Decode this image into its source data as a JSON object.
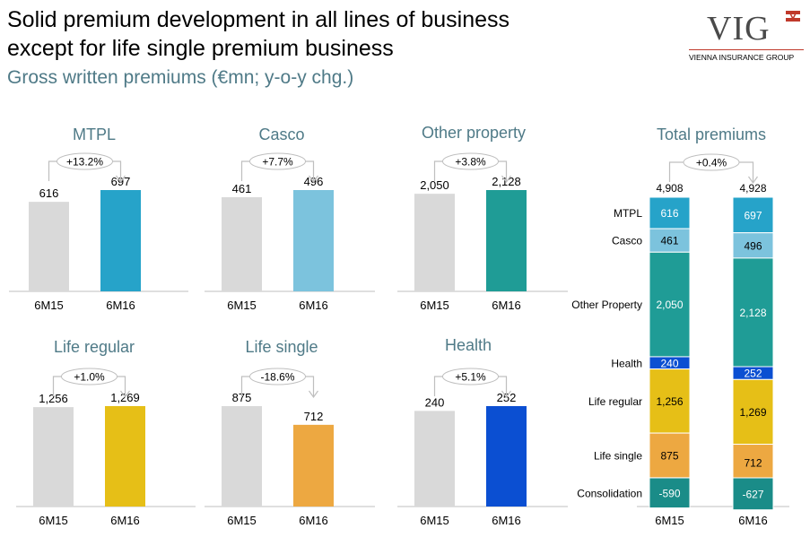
{
  "header": {
    "title_line1": "Solid premium development in all lines of business",
    "title_line2": "except for life single premium business",
    "subtitle": "Gross written premiums (€mn; y-o-y chg.)"
  },
  "logo": {
    "text": "VIG",
    "subtext": "VIENNA INSURANCE GROUP",
    "color": "#c0392b"
  },
  "chart_data": [
    {
      "type": "bar",
      "title": "MTPL",
      "categories": [
        "6M15",
        "6M16"
      ],
      "values": [
        616,
        697
      ],
      "value_labels": [
        "616",
        "697"
      ],
      "change": "+13.2%",
      "colors": [
        "#d9d9d9",
        "#26a3c9"
      ]
    },
    {
      "type": "bar",
      "title": "Casco",
      "categories": [
        "6M15",
        "6M16"
      ],
      "values": [
        461,
        496
      ],
      "value_labels": [
        "461",
        "496"
      ],
      "change": "+7.7%",
      "colors": [
        "#d9d9d9",
        "#7cc3dd"
      ]
    },
    {
      "type": "bar",
      "title": "Other property",
      "categories": [
        "6M15",
        "6M16"
      ],
      "values": [
        2050,
        2128
      ],
      "value_labels": [
        "2,050",
        "2,128"
      ],
      "change": "+3.8%",
      "colors": [
        "#d9d9d9",
        "#1f9c96"
      ]
    },
    {
      "type": "bar",
      "title": "Life regular",
      "categories": [
        "6M15",
        "6M16"
      ],
      "values": [
        1256,
        1269
      ],
      "value_labels": [
        "1,256",
        "1,269"
      ],
      "change": "+1.0%",
      "colors": [
        "#d9d9d9",
        "#e6bf17"
      ]
    },
    {
      "type": "bar",
      "title": "Life single",
      "categories": [
        "6M15",
        "6M16"
      ],
      "values": [
        875,
        712
      ],
      "value_labels": [
        "875",
        "712"
      ],
      "change": "-18.6%",
      "colors": [
        "#d9d9d9",
        "#eda841"
      ]
    },
    {
      "type": "bar",
      "title": "Health",
      "categories": [
        "6M15",
        "6M16"
      ],
      "values": [
        240,
        252
      ],
      "value_labels": [
        "240",
        "252"
      ],
      "change": "+5.1%",
      "colors": [
        "#d9d9d9",
        "#0b4fd2"
      ]
    },
    {
      "type": "stacked_bar",
      "title": "Total premiums",
      "categories": [
        "6M15",
        "6M16"
      ],
      "totals": [
        4908,
        4928
      ],
      "total_labels": [
        "4,908",
        "4,928"
      ],
      "change": "+0.4%",
      "series": [
        {
          "name": "MTPL",
          "values": [
            616,
            697
          ],
          "labels": [
            "616",
            "697"
          ],
          "color": "#26a3c9",
          "text_color": "#ffffff"
        },
        {
          "name": "Casco",
          "values": [
            461,
            496
          ],
          "labels": [
            "461",
            "496"
          ],
          "color": "#7cc3dd",
          "text_color": "#000000"
        },
        {
          "name": "Other Property",
          "values": [
            2050,
            2128
          ],
          "labels": [
            "2,050",
            "2,128"
          ],
          "color": "#1f9c96",
          "text_color": "#ffffff"
        },
        {
          "name": "Health",
          "values": [
            240,
            252
          ],
          "labels": [
            "240",
            "252"
          ],
          "color": "#0b4fd2",
          "text_color": "#ffffff"
        },
        {
          "name": "Life regular",
          "values": [
            1256,
            1269
          ],
          "labels": [
            "1,256",
            "1,269"
          ],
          "color": "#e6bf17",
          "text_color": "#000000"
        },
        {
          "name": "Life single",
          "values": [
            875,
            712
          ],
          "labels": [
            "875",
            "712"
          ],
          "color": "#eda841",
          "text_color": "#000000"
        },
        {
          "name": "Consolidation",
          "values": [
            -590,
            -627
          ],
          "labels": [
            "-590",
            "-627"
          ],
          "color": "#1a8c88",
          "text_color": "#ffffff"
        }
      ]
    }
  ],
  "colors": {
    "panel_title": "#4f7a87",
    "axis": "#bfbfbf",
    "baseline_gray": "#d9d9d9",
    "arrow": "#bfbfbf"
  }
}
